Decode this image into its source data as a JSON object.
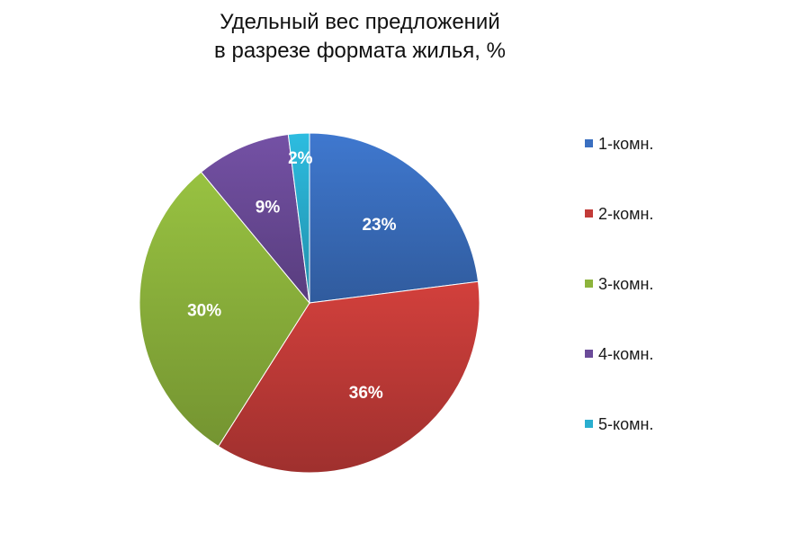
{
  "chart_data": {
    "type": "pie",
    "title_lines": [
      "Удельный вес предложений",
      "в разрезе формата жилья, %"
    ],
    "categories": [
      "1-комн.",
      "2-комн.",
      "3-комн.",
      "4-комн.",
      "5-комн."
    ],
    "values": [
      23,
      36,
      30,
      9,
      2
    ],
    "data_labels": [
      "23%",
      "36%",
      "30%",
      "9%",
      "2%"
    ],
    "colors": [
      "#3a6fc0",
      "#c23b38",
      "#8db43c",
      "#6b4b99",
      "#2aaecf"
    ],
    "legend_position": "right"
  }
}
